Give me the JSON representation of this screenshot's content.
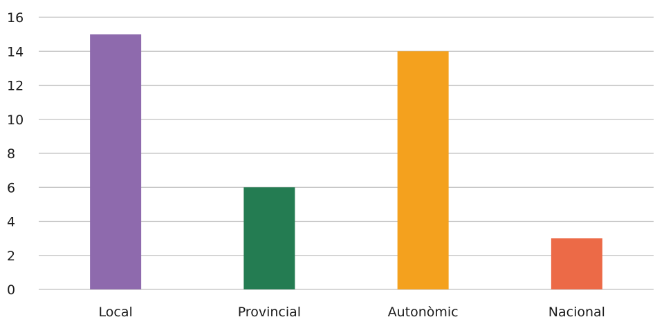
{
  "chart_data": {
    "type": "bar",
    "title": "",
    "xlabel": "",
    "ylabel": "",
    "categories": [
      "Local",
      "Provincial",
      "Autonòmic",
      "Nacional"
    ],
    "values": [
      15,
      6,
      14,
      3
    ],
    "colors": [
      "#8e6aad",
      "#247c52",
      "#f4a11e",
      "#ec6a47"
    ],
    "ylim": [
      0,
      16
    ],
    "yticks": [
      "0",
      "2",
      "4",
      "6",
      "8",
      "10",
      "12",
      "14",
      "16"
    ],
    "grid": true,
    "legend": "none"
  }
}
